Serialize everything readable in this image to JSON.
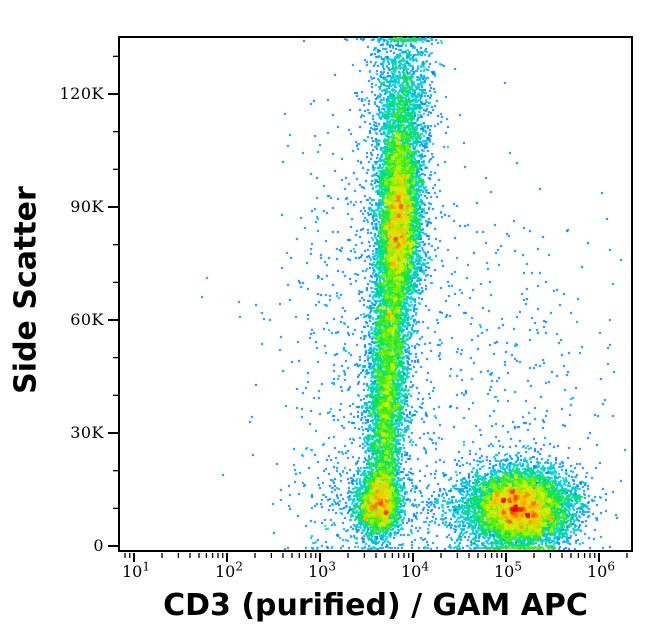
{
  "figure": {
    "background_color": "#ffffff",
    "frame_color": "#000000",
    "tick_color": "#000000",
    "text_color": "#000000"
  },
  "chart_data": {
    "type": "scatter",
    "subtype": "flow-cytometry-pseudocolor-density-dot-plot",
    "title": "",
    "xlabel": "CD3 (purified) / GAM APC",
    "ylabel": "Side Scatter",
    "x_scale": "log10",
    "y_scale": "linear",
    "x_display_range_log10": [
      0.85,
      6.35
    ],
    "ylim": [
      0,
      134800
    ],
    "grid": false,
    "legend": false,
    "x_axis": {
      "ticks": [
        {
          "value": 10,
          "label_base": "10",
          "label_exp": "1",
          "exp": 1
        },
        {
          "value": 100,
          "label_base": "10",
          "label_exp": "2",
          "exp": 2
        },
        {
          "value": 1000,
          "label_base": "10",
          "label_exp": "3",
          "exp": 3
        },
        {
          "value": 10000,
          "label_base": "10",
          "label_exp": "4",
          "exp": 4
        },
        {
          "value": 100000,
          "label_base": "10",
          "label_exp": "5",
          "exp": 5
        },
        {
          "value": 1000000,
          "label_base": "10",
          "label_exp": "6",
          "exp": 6
        }
      ],
      "minor_subdivisions": [
        2,
        3,
        4,
        5,
        6,
        7,
        8,
        9
      ]
    },
    "y_axis": {
      "ticks": [
        {
          "value": 0,
          "label": "0"
        },
        {
          "value": 30000,
          "label": "30K"
        },
        {
          "value": 60000,
          "label": "60K"
        },
        {
          "value": 90000,
          "label": "90K"
        },
        {
          "value": 120000,
          "label": "120K"
        }
      ],
      "minor_step": 10000,
      "minor_max": 130000
    },
    "colormap": {
      "name": "jet-density",
      "gamma": 0.45,
      "stops": [
        [
          0.0,
          "#0000cd"
        ],
        [
          0.12,
          "#0033ff"
        ],
        [
          0.25,
          "#0099ff"
        ],
        [
          0.38,
          "#00dcdc"
        ],
        [
          0.5,
          "#00e060"
        ],
        [
          0.62,
          "#60f000"
        ],
        [
          0.74,
          "#d8f000"
        ],
        [
          0.84,
          "#ffc000"
        ],
        [
          0.92,
          "#ff6000"
        ],
        [
          1.0,
          "#ee0000"
        ]
      ]
    },
    "dot_size_px": 2,
    "populations": [
      {
        "name": "cd3neg-column-top-clipped-at-axis-max",
        "events": 1700,
        "center": {
          "log10_x": 3.87,
          "ssc": 118000
        },
        "sigma": {
          "log10_x": 0.16,
          "ssc": 12000
        }
      },
      {
        "name": "cd3neg-granulocyte-column-core",
        "events": 6000,
        "center": {
          "log10_x": 3.84,
          "ssc": 87000
        },
        "sigma": {
          "log10_x": 0.12,
          "ssc": 13000
        }
      },
      {
        "name": "cd3neg-column-mid",
        "events": 2500,
        "center": {
          "log10_x": 3.74,
          "ssc": 55000
        },
        "sigma": {
          "log10_x": 0.105,
          "ssc": 13000
        }
      },
      {
        "name": "cd3neg-column-low",
        "events": 2100,
        "center": {
          "log10_x": 3.68,
          "ssc": 30000
        },
        "sigma": {
          "log10_x": 0.1,
          "ssc": 11000
        }
      },
      {
        "name": "cd3neg-low-ssc-base-blob",
        "events": 2400,
        "center": {
          "log10_x": 3.62,
          "ssc": 11500
        },
        "sigma": {
          "log10_x": 0.13,
          "ssc": 4600
        }
      },
      {
        "name": "cd3pos-lymphocytes-apc-bright",
        "events": 7400,
        "center": {
          "log10_x": 5.14,
          "ssc": 10500
        },
        "sigma": {
          "log10_x": 0.28,
          "ssc": 5400
        }
      },
      {
        "name": "scatter-halo-around-column",
        "events": 800,
        "center": {
          "log10_x": 3.6,
          "ssc": 55000
        },
        "sigma": {
          "log10_x": 0.5,
          "ssc": 38000
        }
      },
      {
        "name": "diffuse-background",
        "events": 480,
        "center": {
          "log10_x": 4.5,
          "ssc": 35000
        },
        "sigma": {
          "log10_x": 0.9,
          "ssc": 32000
        }
      },
      {
        "name": "right-upper-sparse",
        "events": 110,
        "center": {
          "log10_x": 5.4,
          "ssc": 30000
        },
        "sigma": {
          "log10_x": 0.35,
          "ssc": 26000
        }
      },
      {
        "name": "left-low-sparse-trail",
        "events": 200,
        "center": {
          "log10_x": 3.25,
          "ssc": 12000
        },
        "sigma": {
          "log10_x": 0.3,
          "ssc": 9000
        }
      },
      {
        "name": "low-ssc-bridge",
        "events": 260,
        "center": {
          "log10_x": 4.4,
          "ssc": 10000
        },
        "sigma": {
          "log10_x": 0.28,
          "ssc": 5000
        }
      }
    ],
    "total_events_rendered": 23950
  }
}
